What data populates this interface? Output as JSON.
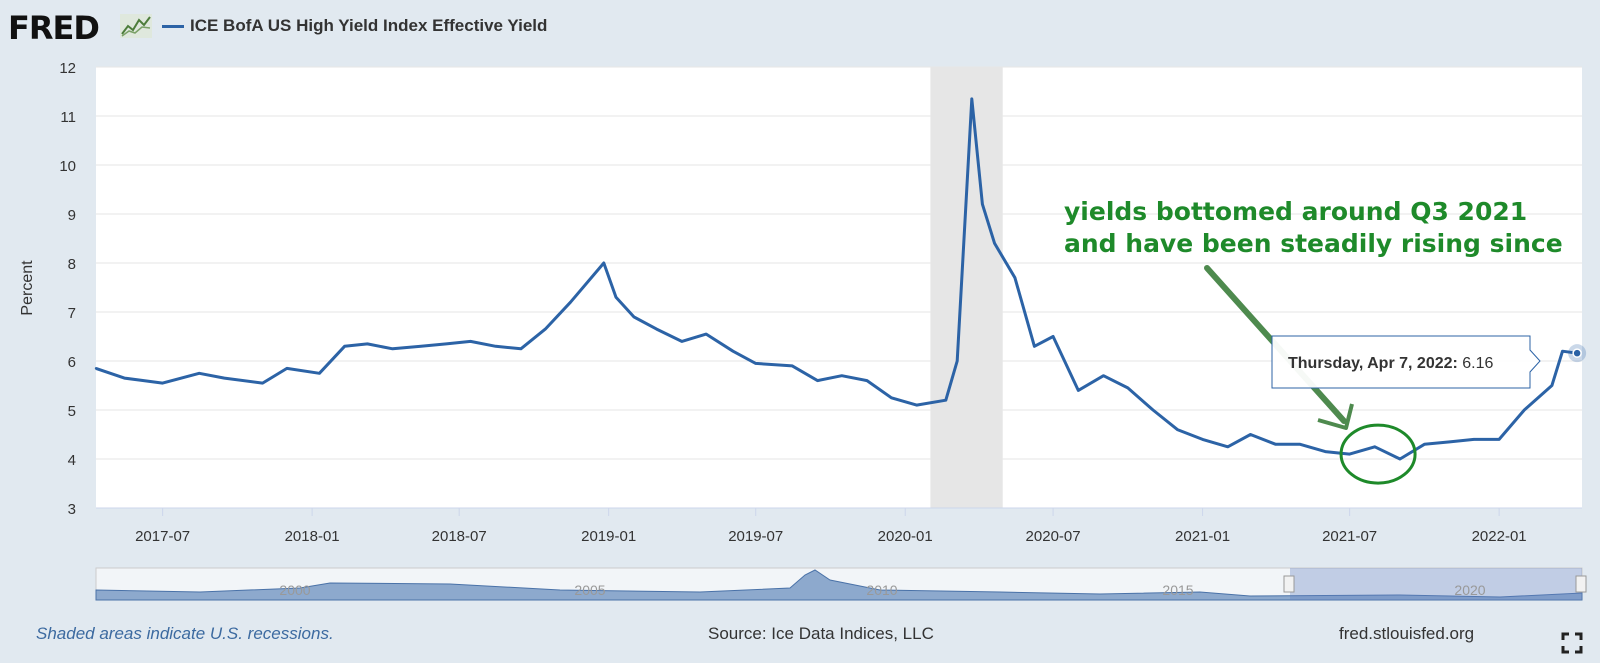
{
  "header": {
    "logo_text": "FRED",
    "legend_label": "ICE BofA US High Yield Index Effective Yield"
  },
  "colors": {
    "series": "#2c63a6",
    "recession": "#e6e6e6",
    "annotation": "#1e8a2a",
    "background": "#e1e9f0"
  },
  "chart_data": {
    "type": "line",
    "ylabel": "Percent",
    "ylim": [
      3,
      12
    ],
    "y_ticks": [
      "3",
      "4",
      "5",
      "6",
      "7",
      "8",
      "9",
      "10",
      "11",
      "12"
    ],
    "x_ticks": [
      "2017-07",
      "2018-01",
      "2018-07",
      "2019-01",
      "2019-07",
      "2020-01",
      "2020-07",
      "2021-01",
      "2021-07",
      "2022-01"
    ],
    "xlim": [
      "2017-04-10",
      "2022-04-13"
    ],
    "grid": "horizontal",
    "recessions": [
      {
        "start": "2020-02-01",
        "end": "2020-04-30"
      }
    ],
    "series": [
      {
        "name": "ICE BofA US High Yield Index Effective Yield",
        "x": [
          "2017-04-10",
          "2017-05-15",
          "2017-07-01",
          "2017-08-15",
          "2017-09-15",
          "2017-11-01",
          "2017-12-01",
          "2018-01-10",
          "2018-02-10",
          "2018-03-10",
          "2018-04-10",
          "2018-05-15",
          "2018-06-15",
          "2018-07-15",
          "2018-08-15",
          "2018-09-15",
          "2018-10-15",
          "2018-11-15",
          "2018-12-26",
          "2019-01-10",
          "2019-02-01",
          "2019-03-01",
          "2019-04-01",
          "2019-05-01",
          "2019-06-03",
          "2019-07-01",
          "2019-08-15",
          "2019-09-15",
          "2019-10-15",
          "2019-11-15",
          "2019-12-15",
          "2020-01-15",
          "2020-02-20",
          "2020-03-05",
          "2020-03-23",
          "2020-04-05",
          "2020-04-20",
          "2020-05-15",
          "2020-06-08",
          "2020-07-01",
          "2020-08-01",
          "2020-09-01",
          "2020-10-01",
          "2020-11-01",
          "2020-12-01",
          "2021-01-01",
          "2021-02-01",
          "2021-03-01",
          "2021-04-01",
          "2021-05-01",
          "2021-06-01",
          "2021-07-01",
          "2021-08-01",
          "2021-09-01",
          "2021-10-01",
          "2021-11-01",
          "2021-12-01",
          "2022-01-01",
          "2022-02-01",
          "2022-03-07",
          "2022-03-20",
          "2022-04-07"
        ],
        "values": [
          5.85,
          5.65,
          5.55,
          5.75,
          5.65,
          5.55,
          5.85,
          5.75,
          6.3,
          6.35,
          6.25,
          6.3,
          6.35,
          6.4,
          6.3,
          6.25,
          6.65,
          7.2,
          8.0,
          7.3,
          6.9,
          6.65,
          6.4,
          6.55,
          6.2,
          5.95,
          5.9,
          5.6,
          5.7,
          5.6,
          5.25,
          5.1,
          5.2,
          6.0,
          11.35,
          9.2,
          8.4,
          7.7,
          6.3,
          6.5,
          5.4,
          5.7,
          5.45,
          5.0,
          4.6,
          4.4,
          4.25,
          4.5,
          4.3,
          4.3,
          4.15,
          4.1,
          4.25,
          4.0,
          4.3,
          4.35,
          4.4,
          4.4,
          5.0,
          5.5,
          6.2,
          6.16
        ]
      }
    ],
    "tooltip": {
      "label": "Thursday, Apr 7, 2022:",
      "value": "6.16"
    },
    "annotation": {
      "line1": "yields bottomed around Q3 2021",
      "line2": "and have been steadily rising since"
    },
    "navigator": {
      "labels": [
        "2000",
        "2005",
        "2010",
        "2015",
        "2020"
      ]
    }
  },
  "footer": {
    "recession_note": "Shaded areas indicate U.S. recessions.",
    "source": "Source: Ice Data Indices, LLC",
    "site": "fred.stlouisfed.org"
  }
}
